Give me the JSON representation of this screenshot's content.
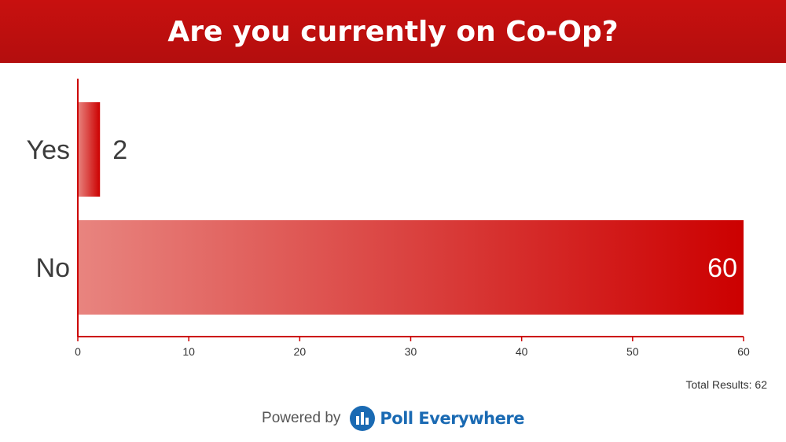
{
  "chart_data": {
    "type": "bar",
    "orientation": "horizontal",
    "title": "Are you currently on Co-Op?",
    "categories": [
      "Yes",
      "No"
    ],
    "values": [
      2,
      60
    ],
    "value_labels": [
      "2",
      "60"
    ],
    "xlim": [
      0,
      60
    ],
    "xticks": [
      "0",
      "10",
      "20",
      "30",
      "40",
      "50",
      "60"
    ],
    "grid": false,
    "bar_color": "#cc0000",
    "axis_color": "#cc0000"
  },
  "footer": {
    "total_label": "Total Results: 62",
    "powered_by": "Powered by",
    "brand": "Poll Everywhere",
    "brand_icon": "poll-everywhere-logo-icon"
  }
}
